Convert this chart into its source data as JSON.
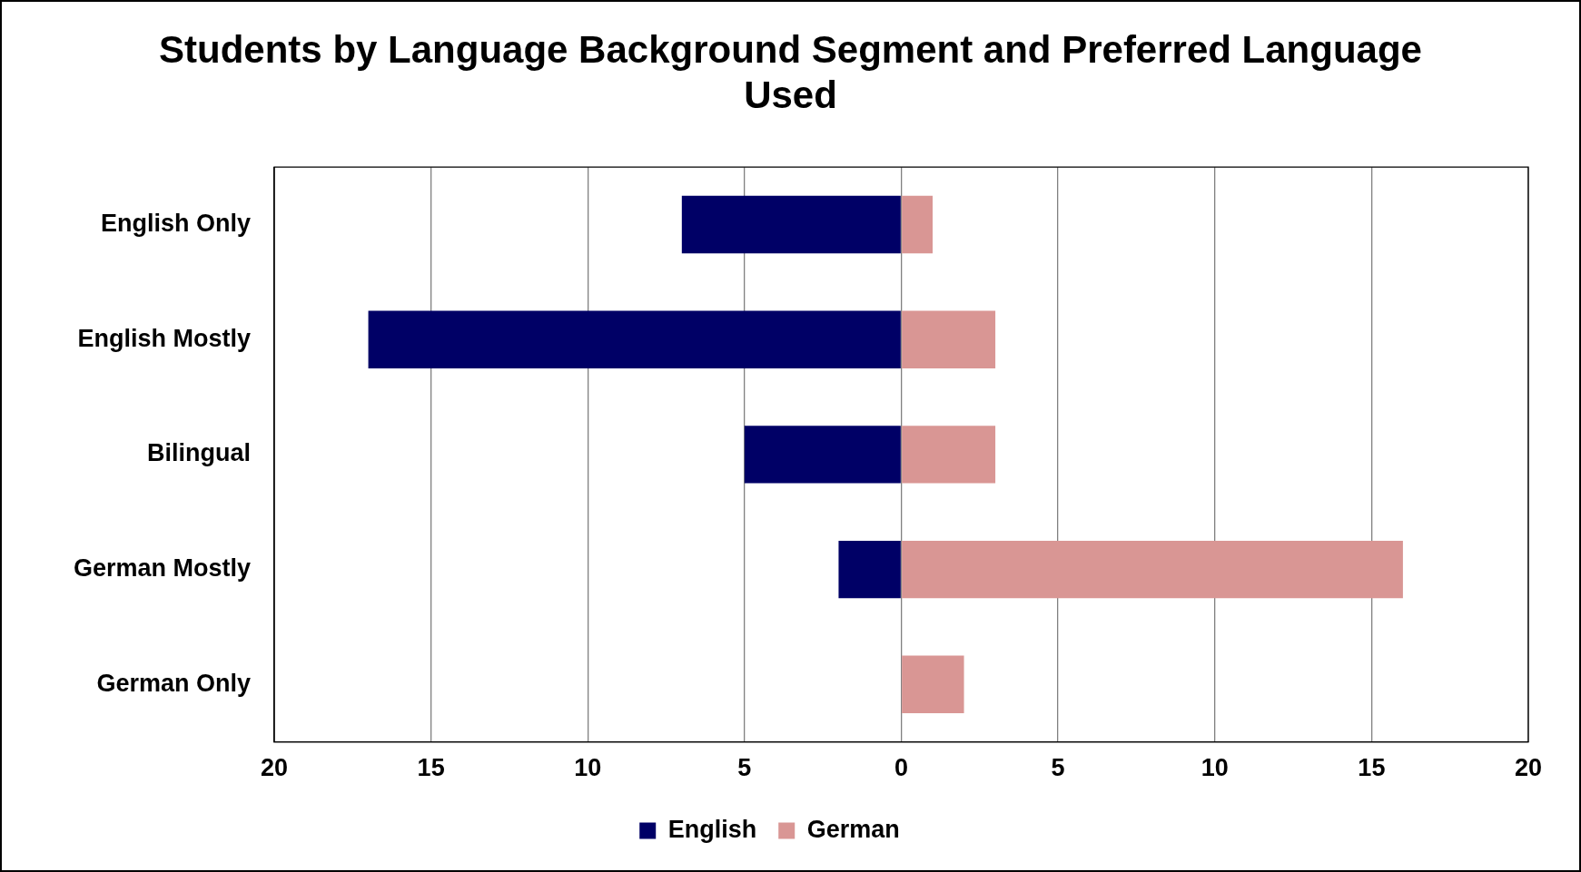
{
  "chart_data": {
    "type": "bar",
    "orientation": "horizontal",
    "stacked": true,
    "title": "Students by Language Background Segment and Preferred Language Used",
    "categories": [
      "English Only",
      "English Mostly",
      "Bilingual",
      "German Mostly",
      "German Only"
    ],
    "series": [
      {
        "name": "English",
        "color": "#000066",
        "values": [
          -7,
          -17,
          -5,
          -2,
          null
        ]
      },
      {
        "name": "German",
        "color": "#d99694",
        "values": [
          1,
          3,
          3,
          16,
          2
        ]
      }
    ],
    "xlim": [
      -20,
      20
    ],
    "xticks": [
      {
        "value": -20,
        "label": "20"
      },
      {
        "value": -15,
        "label": "15"
      },
      {
        "value": -10,
        "label": "10"
      },
      {
        "value": -5,
        "label": "5"
      },
      0,
      5,
      10,
      15,
      20
    ],
    "grid": "x",
    "legend": "bottom"
  }
}
